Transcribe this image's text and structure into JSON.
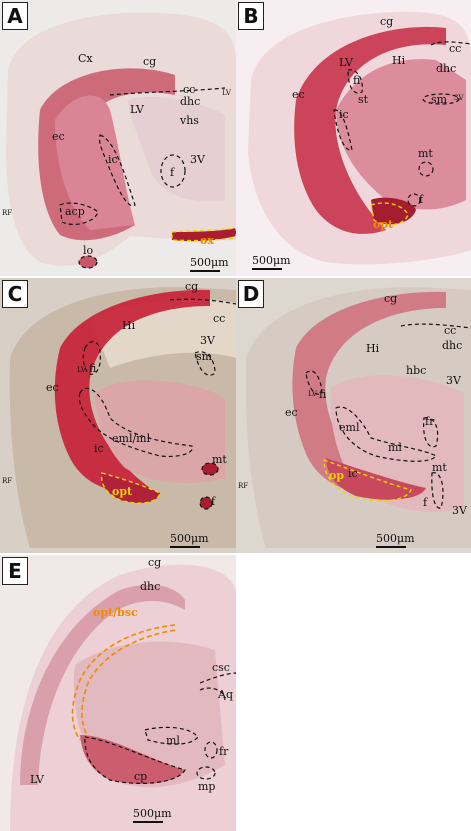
{
  "panels": {
    "A": {
      "letter": "A",
      "labels": {
        "Cx": "Cx",
        "cg": "cg",
        "cc": "cc",
        "LV1": "LV",
        "LV2": "LV",
        "dhc": "dhc",
        "vhs": "vhs",
        "ec": "ec",
        "ic": "ic",
        "f": "f",
        "3V": "3V",
        "acp": "acp",
        "RF": "RF",
        "lo": "lo",
        "ox": "ox"
      },
      "scale": "500μm"
    },
    "B": {
      "letter": "B",
      "labels": {
        "cg": "cg",
        "cc": "cc",
        "dhc": "dhc",
        "LV": "LV",
        "Hi": "Hi",
        "fi": "fi",
        "st": "st",
        "ec": "ec",
        "ic": "ic",
        "sm": "sm",
        "3V": "3V",
        "mt": "mt",
        "f": "f",
        "opt": "opt"
      },
      "scale": "500μm"
    },
    "C": {
      "letter": "C",
      "labels": {
        "cg": "cg",
        "cc": "cc",
        "Hi": "Hi",
        "3V": "3V",
        "sm": "sm",
        "LV": "LV",
        "fi": "fi",
        "ec": "ec",
        "eml_ml": "eml/ml",
        "ic": "ic",
        "mt": "mt",
        "RF": "RF",
        "opt": "opt",
        "f": "f"
      },
      "scale": "500μm"
    },
    "D": {
      "letter": "D",
      "labels": {
        "cg": "cg",
        "cc": "cc",
        "dhc": "dhc",
        "Hi": "Hi",
        "hbc": "hbc",
        "3V1": "3V",
        "LV": "LV",
        "fi": "fi",
        "fr": "fr",
        "ec": "ec",
        "eml": "eml",
        "ml": "ml",
        "ic": "ic",
        "op": "op",
        "mt": "mt",
        "RF": "RF",
        "f": "f",
        "3V2": "3V"
      },
      "scale": "500μm"
    },
    "E": {
      "letter": "E",
      "labels": {
        "cg": "cg",
        "dhc": "dhc",
        "opt_bsc": "opt/bsc",
        "csc": "csc",
        "Aq": "Aq",
        "ml": "ml",
        "fr": "fr",
        "LV": "LV",
        "cp": "cp",
        "mp": "mp"
      },
      "scale": "500μm"
    }
  },
  "colors": {
    "stain": "#c2283d",
    "tissue": "#eccdd3",
    "dash_black": "#111111",
    "dash_yellow": "#f2d400",
    "dash_orange": "#f08a00"
  }
}
